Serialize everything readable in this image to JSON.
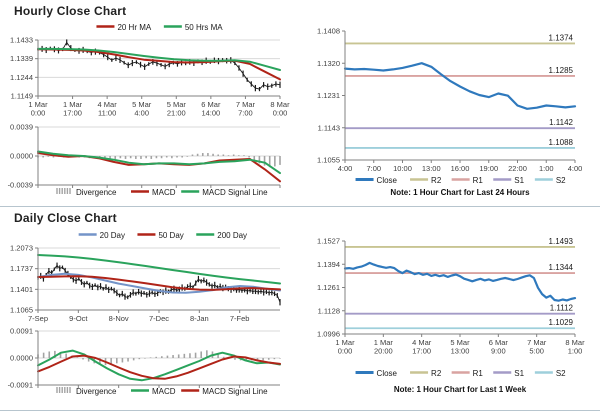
{
  "page": {
    "background": "#ffffff",
    "divider_color": "#b7c5ce"
  },
  "sections": {
    "hourly": {
      "title": "Hourly Close Chart",
      "pivot_note": "Note: 1 Hour Chart for Last 24 Hours"
    },
    "daily": {
      "title": "Daily Close Chart",
      "pivot_note": "Note: 1 Hour Chart for Last 1 Week"
    }
  },
  "colors": {
    "price_bars": "#1a1a1a",
    "ma_red": "#b02418",
    "ma_green": "#2aa35c",
    "ma_blue": "#7494c8",
    "close_blue": "#2f79bd",
    "r2_olive": "#c8c493",
    "r1_rose": "#d9a3a1",
    "s1_purple": "#a49bc7",
    "s2_cyan": "#9ecfdb",
    "divergence_gray": "#a3a3a3",
    "grid": "#d9d9d9",
    "axis": "#808080",
    "tick_text": "#404040"
  },
  "chart_data": [
    {
      "id": "hourly_price",
      "type": "line",
      "y_top": 1.1433,
      "y_bottom": 1.1149,
      "grid": true,
      "y_ticks": [
        "1.1433",
        "1.1339",
        "1.1244",
        "1.1149"
      ],
      "x_ticks": [
        [
          "1 Mar",
          "0:00"
        ],
        [
          "1 Mar",
          "17:00"
        ],
        [
          "4 Mar",
          "11:00"
        ],
        [
          "5 Mar",
          "4:00"
        ],
        [
          "5 Mar",
          "21:00"
        ],
        [
          "6 Mar",
          "14:00"
        ],
        [
          "7 Mar",
          "7:00"
        ],
        [
          "8 Mar",
          "0:00"
        ]
      ],
      "legend": [
        {
          "label": "20 Hr MA",
          "color": "#b02418",
          "swatch": "line"
        },
        {
          "label": "50 Hrs MA",
          "color": "#2aa35c",
          "swatch": "line"
        }
      ],
      "series": [
        {
          "name": "Close",
          "kind": "price",
          "color": "#1a1a1a",
          "width": 1,
          "values": [
            1.1385,
            1.1388,
            1.1382,
            1.1391,
            1.1386,
            1.138,
            1.1385,
            1.1421,
            1.1392,
            1.1381,
            1.1378,
            1.1383,
            1.1375,
            1.137,
            1.1374,
            1.1368,
            1.136,
            1.1346,
            1.1331,
            1.1341,
            1.1332,
            1.1318,
            1.1305,
            1.1316,
            1.1321,
            1.1308,
            1.1297,
            1.1311,
            1.1322,
            1.1316,
            1.1307,
            1.1299,
            1.1311,
            1.1318,
            1.1312,
            1.132,
            1.1315,
            1.1322,
            1.1317,
            1.1325,
            1.132,
            1.1328,
            1.1322,
            1.133,
            1.1326,
            1.1331,
            1.1328,
            1.133,
            1.1316,
            1.1291,
            1.1262,
            1.1231,
            1.121,
            1.1189,
            1.1184,
            1.1206,
            1.1196,
            1.1201,
            1.121,
            1.1206
          ]
        },
        {
          "name": "20 Hr MA",
          "kind": "line",
          "color": "#b02418",
          "width": 2,
          "values": [
            1.1386,
            1.1385,
            1.1383,
            1.138,
            1.1372,
            1.136,
            1.1346,
            1.1333,
            1.1327,
            1.1321,
            1.1319,
            1.1321,
            1.1325,
            1.1328,
            1.1312,
            1.1272,
            1.1233
          ]
        },
        {
          "name": "50 Hrs MA",
          "kind": "line",
          "color": "#2aa35c",
          "width": 2,
          "values": [
            1.1388,
            1.1388,
            1.1387,
            1.1385,
            1.138,
            1.1372,
            1.1362,
            1.1352,
            1.1343,
            1.1335,
            1.133,
            1.1328,
            1.1328,
            1.133,
            1.1323,
            1.1302,
            1.1281
          ]
        }
      ]
    },
    {
      "id": "hourly_macd",
      "type": "line",
      "y_top": 0.0039,
      "y_bottom": -0.0039,
      "grid": true,
      "y_ticks": [
        "0.0039",
        "0.0000",
        "-0.0039"
      ],
      "legend": [
        {
          "label": "Divergence",
          "color": "#a3a3a3",
          "swatch": "bars"
        },
        {
          "label": "MACD",
          "color": "#b02418",
          "swatch": "line"
        },
        {
          "label": "MACD Signal Line",
          "color": "#2aa35c",
          "swatch": "line"
        }
      ],
      "series": [
        {
          "name": "Divergence",
          "kind": "divergence",
          "color": "#a3a3a3",
          "values": [
            -0.0002,
            -0.0002,
            -0.0001,
            -0.0002,
            -0.0001,
            -0.0002,
            -0.0002,
            -0.0001,
            -0.0002,
            -0.0002,
            -0.0003,
            -0.0003,
            -0.0004,
            -0.0003,
            -0.0004,
            -0.0004,
            -0.0003,
            -0.0004,
            -0.0003,
            -0.0004,
            -0.0004,
            -0.0003,
            -0.0004,
            -0.0003,
            -0.0003,
            -0.0002,
            -0.0003,
            -0.0002,
            -0.0002,
            -0.0001,
            0.0002,
            0.0003,
            0.0004,
            0.0004,
            0.0003,
            0.0002,
            0.0002,
            0.0001,
            0.0002,
            0.0001,
            0.0001,
            -0.0002,
            -0.0006,
            -0.001,
            -0.0013,
            -0.0015,
            -0.0014,
            -0.0012
          ]
        },
        {
          "name": "MACD",
          "kind": "line",
          "color": "#b02418",
          "width": 2,
          "values": [
            0.0004,
            0.0001,
            -0.0001,
            0.0,
            -0.0003,
            -0.0008,
            -0.0012,
            -0.0011,
            -0.001,
            -0.0011,
            -0.0012,
            -0.001,
            -0.0006,
            -0.0005,
            -0.0004,
            -0.0018,
            -0.0034
          ]
        },
        {
          "name": "MACD Signal Line",
          "kind": "line",
          "color": "#2aa35c",
          "width": 2,
          "values": [
            0.0006,
            0.0003,
            0.0001,
            0.0,
            -0.0002,
            -0.0005,
            -0.0009,
            -0.0011,
            -0.001,
            -0.001,
            -0.0011,
            -0.001,
            -0.0008,
            -0.0007,
            -0.0005,
            -0.0009,
            -0.0023
          ]
        }
      ]
    },
    {
      "id": "daily_price",
      "type": "line",
      "y_top": 1.2073,
      "y_bottom": 1.1065,
      "grid": true,
      "y_ticks": [
        "1.2073",
        "1.1737",
        "1.1401",
        "1.1065"
      ],
      "x_ticks": [
        "7-Sep",
        "9-Oct",
        "8-Nov",
        "7-Dec",
        "8-Jan",
        "7-Feb"
      ],
      "legend": [
        {
          "label": "20 Day",
          "color": "#7494c8",
          "swatch": "line"
        },
        {
          "label": "50 Day",
          "color": "#b02418",
          "swatch": "line"
        },
        {
          "label": "200 Day",
          "color": "#2aa35c",
          "swatch": "line"
        }
      ],
      "series": [
        {
          "name": "Close",
          "kind": "price",
          "color": "#1a1a1a",
          "width": 1,
          "values": [
            1.158,
            1.162,
            1.1575,
            1.164,
            1.17,
            1.1662,
            1.173,
            1.1788,
            1.1742,
            1.176,
            1.1702,
            1.1652,
            1.16,
            1.1562,
            1.154,
            1.1572,
            1.152,
            1.1482,
            1.151,
            1.1462,
            1.144,
            1.147,
            1.1432,
            1.1452,
            1.141,
            1.1436,
            1.1392,
            1.1412,
            1.138,
            1.1342,
            1.1302,
            1.133,
            1.1282,
            1.1272,
            1.1312,
            1.135,
            1.133,
            1.1362,
            1.1332,
            1.1342,
            1.1312,
            1.1332,
            1.135,
            1.1322,
            1.1342,
            1.137,
            1.1352,
            1.138,
            1.1362,
            1.139,
            1.141,
            1.1382,
            1.1402,
            1.143,
            1.1412,
            1.144,
            1.146,
            1.1432,
            1.1502,
            1.1568,
            1.1532,
            1.155,
            1.1512,
            1.1482,
            1.1452,
            1.1472,
            1.1432,
            1.1452,
            1.1422,
            1.1442,
            1.1412,
            1.1396,
            1.1406,
            1.1386,
            1.14,
            1.1382,
            1.1392,
            1.1372,
            1.1386,
            1.1366,
            1.1376,
            1.1356,
            1.137,
            1.1352,
            1.1362,
            1.1342,
            1.1356,
            1.133,
            1.1302,
            1.1192
          ]
        },
        {
          "name": "20 Day",
          "kind": "line",
          "color": "#7494c8",
          "width": 2,
          "values": [
            1.16,
            1.1635,
            1.1655,
            1.1635,
            1.1595,
            1.1545,
            1.1495,
            1.1455,
            1.1415,
            1.1375,
            1.135,
            1.1345,
            1.1362,
            1.1388,
            1.1432,
            1.1455,
            1.1442,
            1.1412,
            1.1382
          ]
        },
        {
          "name": "50 Day",
          "kind": "line",
          "color": "#b02418",
          "width": 2,
          "values": [
            1.1602,
            1.1606,
            1.1612,
            1.1613,
            1.1605,
            1.1585,
            1.156,
            1.153,
            1.15,
            1.1466,
            1.1436,
            1.1412,
            1.1396,
            1.1392,
            1.1402,
            1.1416,
            1.1421,
            1.1412,
            1.14
          ]
        },
        {
          "name": "200 Day",
          "kind": "line",
          "color": "#2aa35c",
          "width": 2,
          "values": [
            1.196,
            1.195,
            1.1936,
            1.1918,
            1.1896,
            1.187,
            1.1842,
            1.1812,
            1.178,
            1.1748,
            1.1716,
            1.1684,
            1.1652,
            1.1622,
            1.1594,
            1.1568,
            1.1545,
            1.152,
            1.1496
          ]
        }
      ]
    },
    {
      "id": "daily_macd",
      "type": "line",
      "y_top": 0.0091,
      "y_bottom": -0.0091,
      "grid": true,
      "y_ticks": [
        "0.0091",
        "0.0000",
        "-0.0091"
      ],
      "legend": [
        {
          "label": "Divergence",
          "color": "#a3a3a3",
          "swatch": "bars"
        },
        {
          "label": "MACD",
          "color": "#2aa35c",
          "swatch": "line"
        },
        {
          "label": "MACD Signal Line",
          "color": "#b02418",
          "swatch": "line"
        }
      ],
      "series": [
        {
          "name": "Divergence",
          "kind": "divergence",
          "color": "#a3a3a3",
          "values": [
            0.0012,
            0.0018,
            0.0022,
            0.0024,
            0.002,
            0.0015,
            0.0008,
            0.0002,
            -0.0005,
            -0.0012,
            -0.0018,
            -0.0022,
            -0.0024,
            -0.0022,
            -0.0018,
            -0.0015,
            -0.0012,
            -0.0008,
            -0.0004,
            -0.0002,
            0.0002,
            0.0004,
            0.0006,
            0.0008,
            0.001,
            0.0012,
            0.0014,
            0.0016,
            0.0018,
            0.0022,
            0.0026,
            0.0022,
            0.0012,
            0.0004,
            -0.0002,
            -0.0006,
            -0.0008,
            -0.0006,
            -0.0008,
            -0.001,
            -0.0008,
            -0.0006,
            -0.0004,
            -0.0002
          ]
        },
        {
          "name": "MACD",
          "kind": "line",
          "color": "#2aa35c",
          "width": 2,
          "values": [
            -0.0025,
            -0.0005,
            0.0018,
            0.0025,
            0.0012,
            -0.0012,
            -0.0035,
            -0.0055,
            -0.007,
            -0.0075,
            -0.0068,
            -0.0055,
            -0.004,
            -0.0025,
            -0.001,
            0.0008,
            0.0018,
            0.0008,
            -0.0008,
            -0.0018,
            -0.0015,
            -0.0022
          ]
        },
        {
          "name": "MACD Signal Line",
          "kind": "line",
          "color": "#b02418",
          "width": 2,
          "values": [
            -0.0045,
            -0.003,
            -0.0012,
            0.0005,
            0.0008,
            0.0,
            -0.0015,
            -0.0032,
            -0.0048,
            -0.006,
            -0.0068,
            -0.007,
            -0.0062,
            -0.005,
            -0.0035,
            -0.002,
            -0.0005,
            0.0005,
            0.0002,
            -0.0008,
            -0.0015,
            -0.002
          ]
        }
      ]
    },
    {
      "id": "hourly_pivot",
      "type": "line",
      "y_top": 1.1408,
      "y_bottom": 1.1055,
      "grid": false,
      "y_ticks": [
        "1.1408",
        "1.1320",
        "1.1231",
        "1.1143",
        "1.1055"
      ],
      "x_ticks": [
        "4:00",
        "7:00",
        "10:00",
        "13:00",
        "16:00",
        "19:00",
        "22:00",
        "1:00",
        "4:00"
      ],
      "pivots": [
        {
          "name": "R2",
          "label": "1.1374",
          "value": 1.1374,
          "color": "#c8c493"
        },
        {
          "name": "R1",
          "label": "1.1285",
          "value": 1.1285,
          "color": "#d9a3a1"
        },
        {
          "name": "S1",
          "label": "1.1142",
          "value": 1.1142,
          "color": "#a49bc7"
        },
        {
          "name": "S2",
          "label": "1.1088",
          "value": 1.1088,
          "color": "#9ecfdb"
        }
      ],
      "legend": [
        {
          "label": "Close",
          "color": "#2f79bd",
          "swatch": "line-thick"
        },
        {
          "label": "R2",
          "color": "#c8c493",
          "swatch": "line"
        },
        {
          "label": "R1",
          "color": "#d9a3a1",
          "swatch": "line"
        },
        {
          "label": "S1",
          "color": "#a49bc7",
          "swatch": "line"
        },
        {
          "label": "S2",
          "color": "#9ecfdb",
          "swatch": "line"
        }
      ],
      "series": [
        {
          "name": "Close",
          "kind": "line",
          "color": "#2f79bd",
          "width": 2.2,
          "values": [
            1.1305,
            1.1303,
            1.1304,
            1.1302,
            1.13,
            1.1303,
            1.1307,
            1.1313,
            1.132,
            1.131,
            1.129,
            1.1271,
            1.1256,
            1.1243,
            1.1233,
            1.1227,
            1.1237,
            1.1231,
            1.1204,
            1.1195,
            1.1198,
            1.1204,
            1.1202,
            1.1199,
            1.1202
          ]
        }
      ]
    },
    {
      "id": "weekly_pivot",
      "type": "line",
      "y_top": 1.1527,
      "y_bottom": 1.0996,
      "grid": false,
      "y_ticks": [
        "1.1527",
        "1.1394",
        "1.1261",
        "1.1128",
        "1.0996"
      ],
      "x_ticks": [
        [
          "1 Mar",
          "0:00"
        ],
        [
          "1 Mar",
          "20:00"
        ],
        [
          "4 Mar",
          "17:00"
        ],
        [
          "5 Mar",
          "13:00"
        ],
        [
          "6 Mar",
          "9:00"
        ],
        [
          "7 Mar",
          "5:00"
        ],
        [
          "8 Mar",
          "1:00"
        ]
      ],
      "pivots": [
        {
          "name": "R2",
          "label": "1.1493",
          "value": 1.1493,
          "color": "#c8c493"
        },
        {
          "name": "R1",
          "label": "1.1344",
          "value": 1.1344,
          "color": "#d9a3a1"
        },
        {
          "name": "S1",
          "label": "1.1112",
          "value": 1.1112,
          "color": "#a49bc7"
        },
        {
          "name": "S2",
          "label": "1.1029",
          "value": 1.1029,
          "color": "#9ecfdb"
        }
      ],
      "legend": [
        {
          "label": "Close",
          "color": "#2f79bd",
          "swatch": "line-thick"
        },
        {
          "label": "R2",
          "color": "#c8c493",
          "swatch": "line"
        },
        {
          "label": "R1",
          "color": "#d9a3a1",
          "swatch": "line"
        },
        {
          "label": "S1",
          "color": "#a49bc7",
          "swatch": "line"
        },
        {
          "label": "S2",
          "color": "#9ecfdb",
          "swatch": "line"
        }
      ],
      "series": [
        {
          "name": "Close",
          "kind": "line",
          "color": "#2f79bd",
          "width": 2.2,
          "values": [
            1.137,
            1.1372,
            1.1368,
            1.1376,
            1.1381,
            1.139,
            1.1402,
            1.1392,
            1.1384,
            1.1379,
            1.1374,
            1.1378,
            1.1372,
            1.1355,
            1.1344,
            1.1358,
            1.1349,
            1.1338,
            1.1344,
            1.1334,
            1.134,
            1.1328,
            1.1334,
            1.1326,
            1.1332,
            1.1322,
            1.133,
            1.1336,
            1.1326,
            1.1312,
            1.1305,
            1.1297,
            1.1305,
            1.1311,
            1.1302,
            1.1308,
            1.1299,
            1.1305,
            1.1311,
            1.1316,
            1.131,
            1.1304,
            1.131,
            1.1318,
            1.1326,
            1.1331,
            1.1316,
            1.126,
            1.1224,
            1.1204,
            1.1214,
            1.119,
            1.1186,
            1.1193,
            1.1188,
            1.1196,
            1.1201
          ]
        }
      ]
    }
  ]
}
